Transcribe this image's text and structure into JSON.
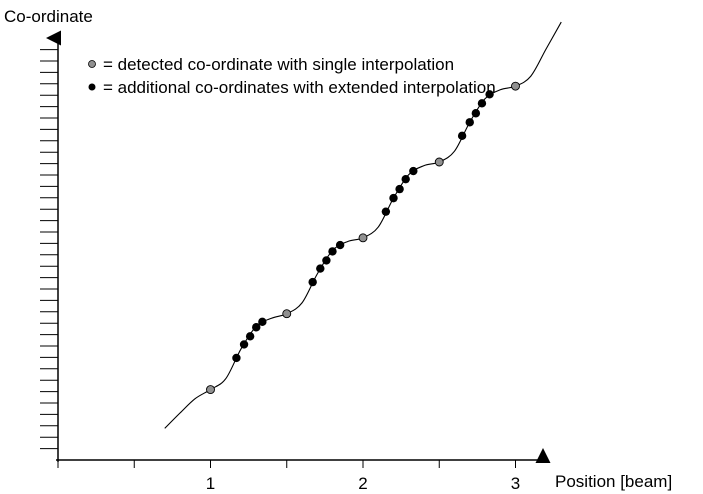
{
  "chart_data": {
    "type": "scatter",
    "title": "",
    "ylabel": "Co-ordinate",
    "xlabel": "Position [beam]",
    "x_ticks_major": [
      1,
      2,
      3
    ],
    "x_ticks_minor": [
      0.5,
      1.5,
      2.5
    ],
    "xlim": [
      0,
      3.4
    ],
    "legend": {
      "placement": "top-left",
      "entries": [
        {
          "marker": "gray-dot",
          "text": "= detected co-ordinate with single interpolation"
        },
        {
          "marker": "black-dot",
          "text": "= additional co-ordinates with extended interpolation"
        }
      ]
    },
    "curve": {
      "description_x_range": [
        0.7,
        3.3
      ],
      "points": [
        [
          0.7,
          0.35
        ],
        [
          0.8,
          0.52
        ],
        [
          0.9,
          0.68
        ],
        [
          1.0,
          0.78
        ],
        [
          1.1,
          0.9
        ],
        [
          1.2,
          1.23
        ],
        [
          1.3,
          1.48
        ],
        [
          1.4,
          1.57
        ],
        [
          1.5,
          1.62
        ],
        [
          1.6,
          1.74
        ],
        [
          1.7,
          2.06
        ],
        [
          1.8,
          2.32
        ],
        [
          1.9,
          2.42
        ],
        [
          2.0,
          2.46
        ],
        [
          2.1,
          2.58
        ],
        [
          2.2,
          2.9
        ],
        [
          2.3,
          3.16
        ],
        [
          2.4,
          3.26
        ],
        [
          2.5,
          3.3
        ],
        [
          2.6,
          3.42
        ],
        [
          2.7,
          3.74
        ],
        [
          2.8,
          4.0
        ],
        [
          2.9,
          4.1
        ],
        [
          3.0,
          4.14
        ],
        [
          3.1,
          4.25
        ],
        [
          3.2,
          4.55
        ],
        [
          3.3,
          4.85
        ]
      ]
    },
    "series": [
      {
        "name": "detected co-ordinate with single interpolation",
        "color": "#909090",
        "points": [
          [
            1.0,
            0.78
          ],
          [
            1.5,
            1.62
          ],
          [
            2.0,
            2.46
          ],
          [
            2.5,
            3.3
          ],
          [
            3.0,
            4.14
          ]
        ]
      },
      {
        "name": "additional co-ordinates with extended interpolation",
        "color": "#000000",
        "points": [
          [
            1.17,
            1.13
          ],
          [
            1.22,
            1.28
          ],
          [
            1.26,
            1.37
          ],
          [
            1.3,
            1.47
          ],
          [
            1.34,
            1.53
          ],
          [
            1.67,
            1.97
          ],
          [
            1.72,
            2.12
          ],
          [
            1.76,
            2.21
          ],
          [
            1.8,
            2.31
          ],
          [
            1.85,
            2.38
          ],
          [
            2.15,
            2.75
          ],
          [
            2.2,
            2.9
          ],
          [
            2.24,
            3.0
          ],
          [
            2.28,
            3.11
          ],
          [
            2.33,
            3.2
          ],
          [
            2.65,
            3.59
          ],
          [
            2.7,
            3.74
          ],
          [
            2.74,
            3.84
          ],
          [
            2.78,
            3.95
          ],
          [
            2.83,
            4.05
          ]
        ]
      }
    ]
  }
}
